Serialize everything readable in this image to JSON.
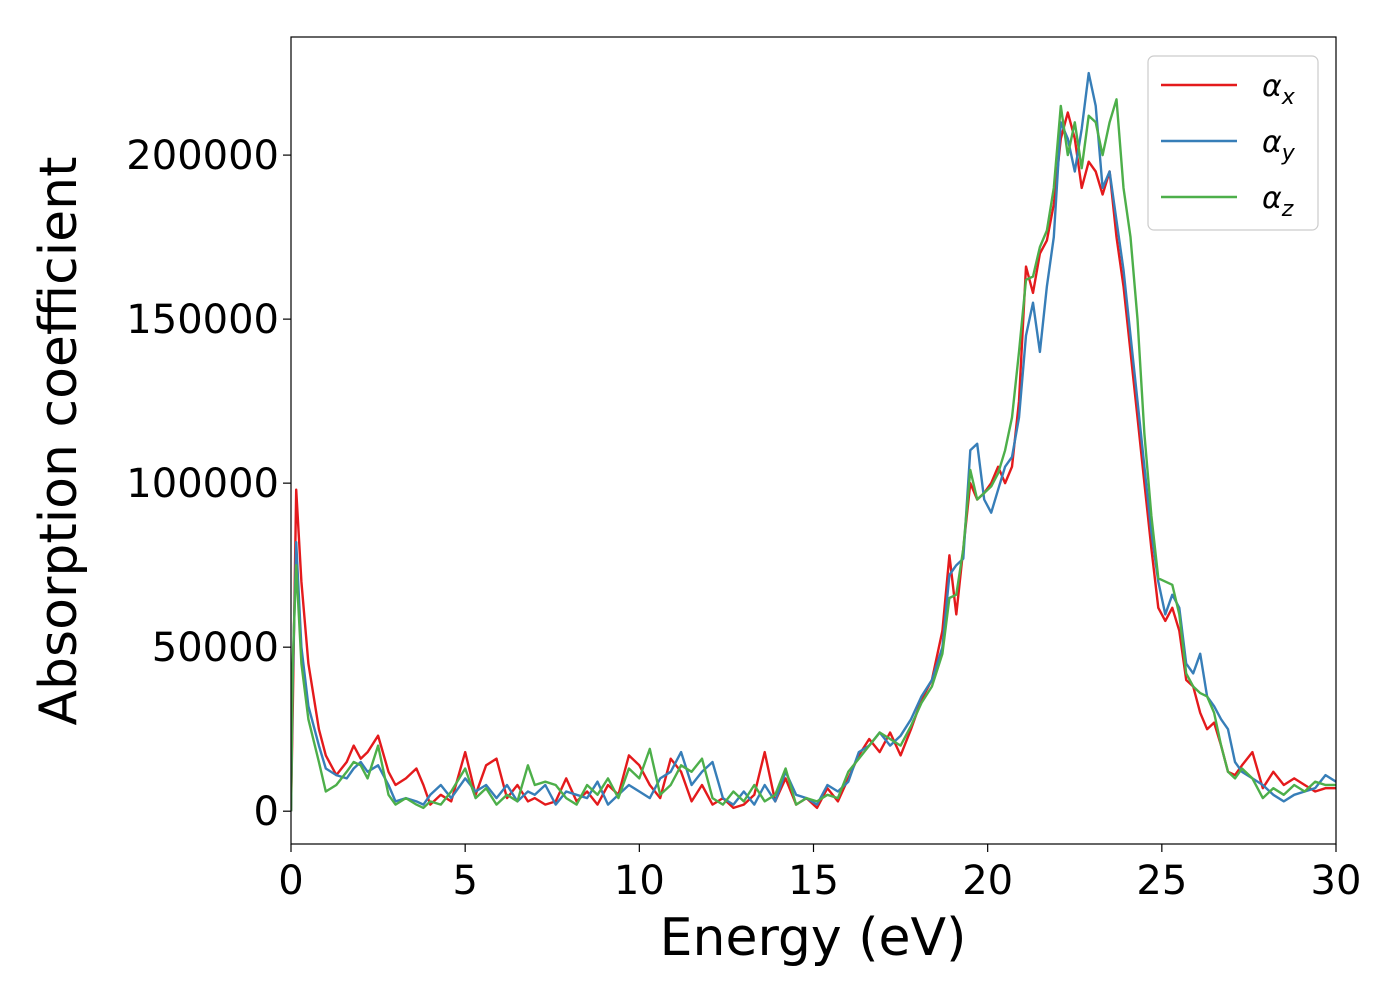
{
  "chart_data": {
    "type": "line",
    "title": "",
    "xlabel": "Energy (eV)",
    "ylabel": "Absorption coefficient",
    "xlim": [
      0,
      30
    ],
    "ylim": [
      -10000,
      236000
    ],
    "xticks": [
      0,
      5,
      10,
      15,
      20,
      25,
      30
    ],
    "xtick_labels": [
      "0",
      "5",
      "10",
      "15",
      "20",
      "25",
      "30"
    ],
    "yticks": [
      0,
      50000,
      100000,
      150000,
      200000
    ],
    "ytick_labels": [
      "0",
      "50000",
      "100000",
      "150000",
      "200000"
    ],
    "grid": false,
    "legend_position": "top-right",
    "series": [
      {
        "name": "αx",
        "legend_base": "α",
        "legend_sub": "x",
        "color": "#e41a1c",
        "x": [
          0,
          0.05,
          0.15,
          0.3,
          0.5,
          0.8,
          1.0,
          1.3,
          1.6,
          1.8,
          2.0,
          2.2,
          2.5,
          2.8,
          3.0,
          3.3,
          3.6,
          3.8,
          4.0,
          4.3,
          4.6,
          5.0,
          5.3,
          5.6,
          5.9,
          6.2,
          6.5,
          6.8,
          7.0,
          7.3,
          7.6,
          7.9,
          8.2,
          8.5,
          8.8,
          9.1,
          9.4,
          9.7,
          10.0,
          10.3,
          10.6,
          10.9,
          11.2,
          11.5,
          11.8,
          12.1,
          12.4,
          12.7,
          13.0,
          13.3,
          13.6,
          13.9,
          14.2,
          14.5,
          14.8,
          15.1,
          15.4,
          15.7,
          16.0,
          16.3,
          16.6,
          16.9,
          17.2,
          17.5,
          17.8,
          18.1,
          18.4,
          18.7,
          18.9,
          19.1,
          19.3,
          19.5,
          19.7,
          19.9,
          20.1,
          20.3,
          20.5,
          20.7,
          20.9,
          21.1,
          21.3,
          21.5,
          21.7,
          21.9,
          22.1,
          22.3,
          22.5,
          22.7,
          22.9,
          23.1,
          23.3,
          23.5,
          23.7,
          23.9,
          24.1,
          24.3,
          24.5,
          24.7,
          24.9,
          25.1,
          25.3,
          25.5,
          25.7,
          25.9,
          26.1,
          26.3,
          26.5,
          26.7,
          26.9,
          27.1,
          27.3,
          27.6,
          27.9,
          28.2,
          28.5,
          28.8,
          29.1,
          29.4,
          29.7,
          30.0
        ],
        "y": [
          0,
          30000,
          98000,
          70000,
          45000,
          25000,
          17000,
          11000,
          15000,
          20000,
          16000,
          18000,
          23000,
          12000,
          8000,
          10000,
          13000,
          8000,
          2000,
          5000,
          3000,
          18000,
          5000,
          14000,
          16000,
          4000,
          8000,
          3000,
          4000,
          2000,
          3000,
          10000,
          3000,
          6000,
          2000,
          8000,
          5000,
          17000,
          14000,
          8000,
          4000,
          16000,
          12000,
          3000,
          8000,
          2000,
          4000,
          1000,
          2000,
          5000,
          18000,
          3000,
          10000,
          2000,
          4000,
          1000,
          7000,
          3000,
          10000,
          17000,
          22000,
          18000,
          24000,
          17000,
          25000,
          34000,
          40000,
          55000,
          78000,
          60000,
          80000,
          100000,
          95000,
          97000,
          100000,
          105000,
          100000,
          105000,
          125000,
          166000,
          158000,
          170000,
          174000,
          185000,
          205000,
          213000,
          205000,
          190000,
          198000,
          195000,
          188000,
          195000,
          175000,
          160000,
          140000,
          120000,
          100000,
          80000,
          62000,
          58000,
          62000,
          55000,
          40000,
          38000,
          30000,
          25000,
          27000,
          20000,
          12000,
          11000,
          14000,
          18000,
          7000,
          12000,
          8000,
          10000,
          8000,
          6000,
          7000,
          7000
        ]
      },
      {
        "name": "αy",
        "legend_base": "α",
        "legend_sub": "y",
        "color": "#377eb8",
        "x": [
          0,
          0.05,
          0.15,
          0.3,
          0.5,
          0.8,
          1.0,
          1.3,
          1.6,
          1.8,
          2.0,
          2.2,
          2.5,
          2.8,
          3.0,
          3.3,
          3.6,
          3.8,
          4.0,
          4.3,
          4.6,
          5.0,
          5.3,
          5.6,
          5.9,
          6.2,
          6.5,
          6.8,
          7.0,
          7.3,
          7.6,
          7.9,
          8.2,
          8.5,
          8.8,
          9.1,
          9.4,
          9.7,
          10.0,
          10.3,
          10.6,
          10.9,
          11.2,
          11.5,
          11.8,
          12.1,
          12.4,
          12.7,
          13.0,
          13.3,
          13.6,
          13.9,
          14.2,
          14.5,
          14.8,
          15.1,
          15.4,
          15.7,
          16.0,
          16.3,
          16.6,
          16.9,
          17.2,
          17.5,
          17.8,
          18.1,
          18.4,
          18.7,
          18.9,
          19.1,
          19.3,
          19.5,
          19.7,
          19.9,
          20.1,
          20.3,
          20.5,
          20.7,
          20.9,
          21.1,
          21.3,
          21.5,
          21.7,
          21.9,
          22.1,
          22.3,
          22.5,
          22.7,
          22.9,
          23.1,
          23.3,
          23.5,
          23.7,
          23.9,
          24.1,
          24.3,
          24.5,
          24.7,
          24.9,
          25.1,
          25.3,
          25.5,
          25.7,
          25.9,
          26.1,
          26.3,
          26.5,
          26.7,
          26.9,
          27.1,
          27.3,
          27.6,
          27.9,
          28.2,
          28.5,
          28.8,
          29.1,
          29.4,
          29.7,
          30.0
        ],
        "y": [
          0,
          40000,
          82000,
          50000,
          32000,
          20000,
          13000,
          11000,
          10000,
          13000,
          15000,
          12000,
          14000,
          8000,
          3000,
          4000,
          3000,
          2000,
          5000,
          8000,
          4000,
          10000,
          6000,
          8000,
          4000,
          8000,
          3000,
          6000,
          5000,
          8000,
          2000,
          6000,
          5000,
          4000,
          9000,
          2000,
          5000,
          8000,
          6000,
          4000,
          10000,
          12000,
          18000,
          8000,
          12000,
          15000,
          4000,
          2000,
          6000,
          2000,
          8000,
          3000,
          12000,
          5000,
          4000,
          2000,
          8000,
          6000,
          9000,
          18000,
          20000,
          24000,
          20000,
          23000,
          28000,
          35000,
          40000,
          50000,
          72000,
          75000,
          77000,
          110000,
          112000,
          95000,
          91000,
          98000,
          105000,
          108000,
          120000,
          145000,
          155000,
          140000,
          160000,
          175000,
          210000,
          205000,
          195000,
          208000,
          225000,
          215000,
          190000,
          195000,
          180000,
          165000,
          145000,
          125000,
          105000,
          85000,
          70000,
          60000,
          66000,
          62000,
          45000,
          42000,
          48000,
          35000,
          32000,
          28000,
          25000,
          15000,
          12000,
          10000,
          8000,
          5000,
          3000,
          5000,
          6000,
          7000,
          11000,
          9000
        ]
      },
      {
        "name": "αz",
        "legend_base": "α",
        "legend_sub": "z",
        "color": "#4daf4a",
        "x": [
          0,
          0.05,
          0.15,
          0.3,
          0.5,
          0.8,
          1.0,
          1.3,
          1.6,
          1.8,
          2.0,
          2.2,
          2.5,
          2.8,
          3.0,
          3.3,
          3.6,
          3.8,
          4.0,
          4.3,
          4.6,
          5.0,
          5.3,
          5.6,
          5.9,
          6.2,
          6.5,
          6.8,
          7.0,
          7.3,
          7.6,
          7.9,
          8.2,
          8.5,
          8.8,
          9.1,
          9.4,
          9.7,
          10.0,
          10.3,
          10.6,
          10.9,
          11.2,
          11.5,
          11.8,
          12.1,
          12.4,
          12.7,
          13.0,
          13.3,
          13.6,
          13.9,
          14.2,
          14.5,
          14.8,
          15.1,
          15.4,
          15.7,
          16.0,
          16.3,
          16.6,
          16.9,
          17.2,
          17.5,
          17.8,
          18.1,
          18.4,
          18.7,
          18.9,
          19.1,
          19.3,
          19.5,
          19.7,
          19.9,
          20.1,
          20.3,
          20.5,
          20.7,
          20.9,
          21.1,
          21.3,
          21.5,
          21.7,
          21.9,
          22.1,
          22.3,
          22.5,
          22.7,
          22.9,
          23.1,
          23.3,
          23.5,
          23.7,
          23.9,
          24.1,
          24.3,
          24.5,
          24.7,
          24.9,
          25.1,
          25.3,
          25.5,
          25.7,
          25.9,
          26.1,
          26.3,
          26.5,
          26.7,
          26.9,
          27.1,
          27.3,
          27.6,
          27.9,
          28.2,
          28.5,
          28.8,
          29.1,
          29.4,
          29.7,
          30.0
        ],
        "y": [
          0,
          45000,
          75000,
          45000,
          28000,
          15000,
          6000,
          8000,
          12000,
          15000,
          14000,
          10000,
          20000,
          5000,
          2000,
          4000,
          2000,
          1000,
          3000,
          2000,
          6000,
          13000,
          4000,
          7000,
          2000,
          5000,
          3000,
          14000,
          8000,
          9000,
          8000,
          4000,
          2000,
          8000,
          5000,
          10000,
          4000,
          13000,
          10000,
          19000,
          5000,
          8000,
          14000,
          12000,
          16000,
          4000,
          2000,
          6000,
          3000,
          8000,
          3000,
          5000,
          13000,
          2000,
          4000,
          3000,
          5000,
          4000,
          12000,
          16000,
          20000,
          24000,
          22000,
          20000,
          26000,
          33000,
          38000,
          48000,
          65000,
          66000,
          80000,
          104000,
          95000,
          97000,
          99000,
          103000,
          110000,
          120000,
          140000,
          162000,
          163000,
          172000,
          177000,
          190000,
          215000,
          200000,
          210000,
          196000,
          212000,
          210000,
          200000,
          210000,
          217000,
          190000,
          175000,
          150000,
          115000,
          90000,
          71000,
          70000,
          69000,
          60000,
          42000,
          38000,
          36000,
          35000,
          30000,
          20000,
          12000,
          10000,
          13000,
          10000,
          4000,
          7000,
          5000,
          8000,
          6000,
          9000,
          8000,
          8000
        ]
      }
    ]
  }
}
